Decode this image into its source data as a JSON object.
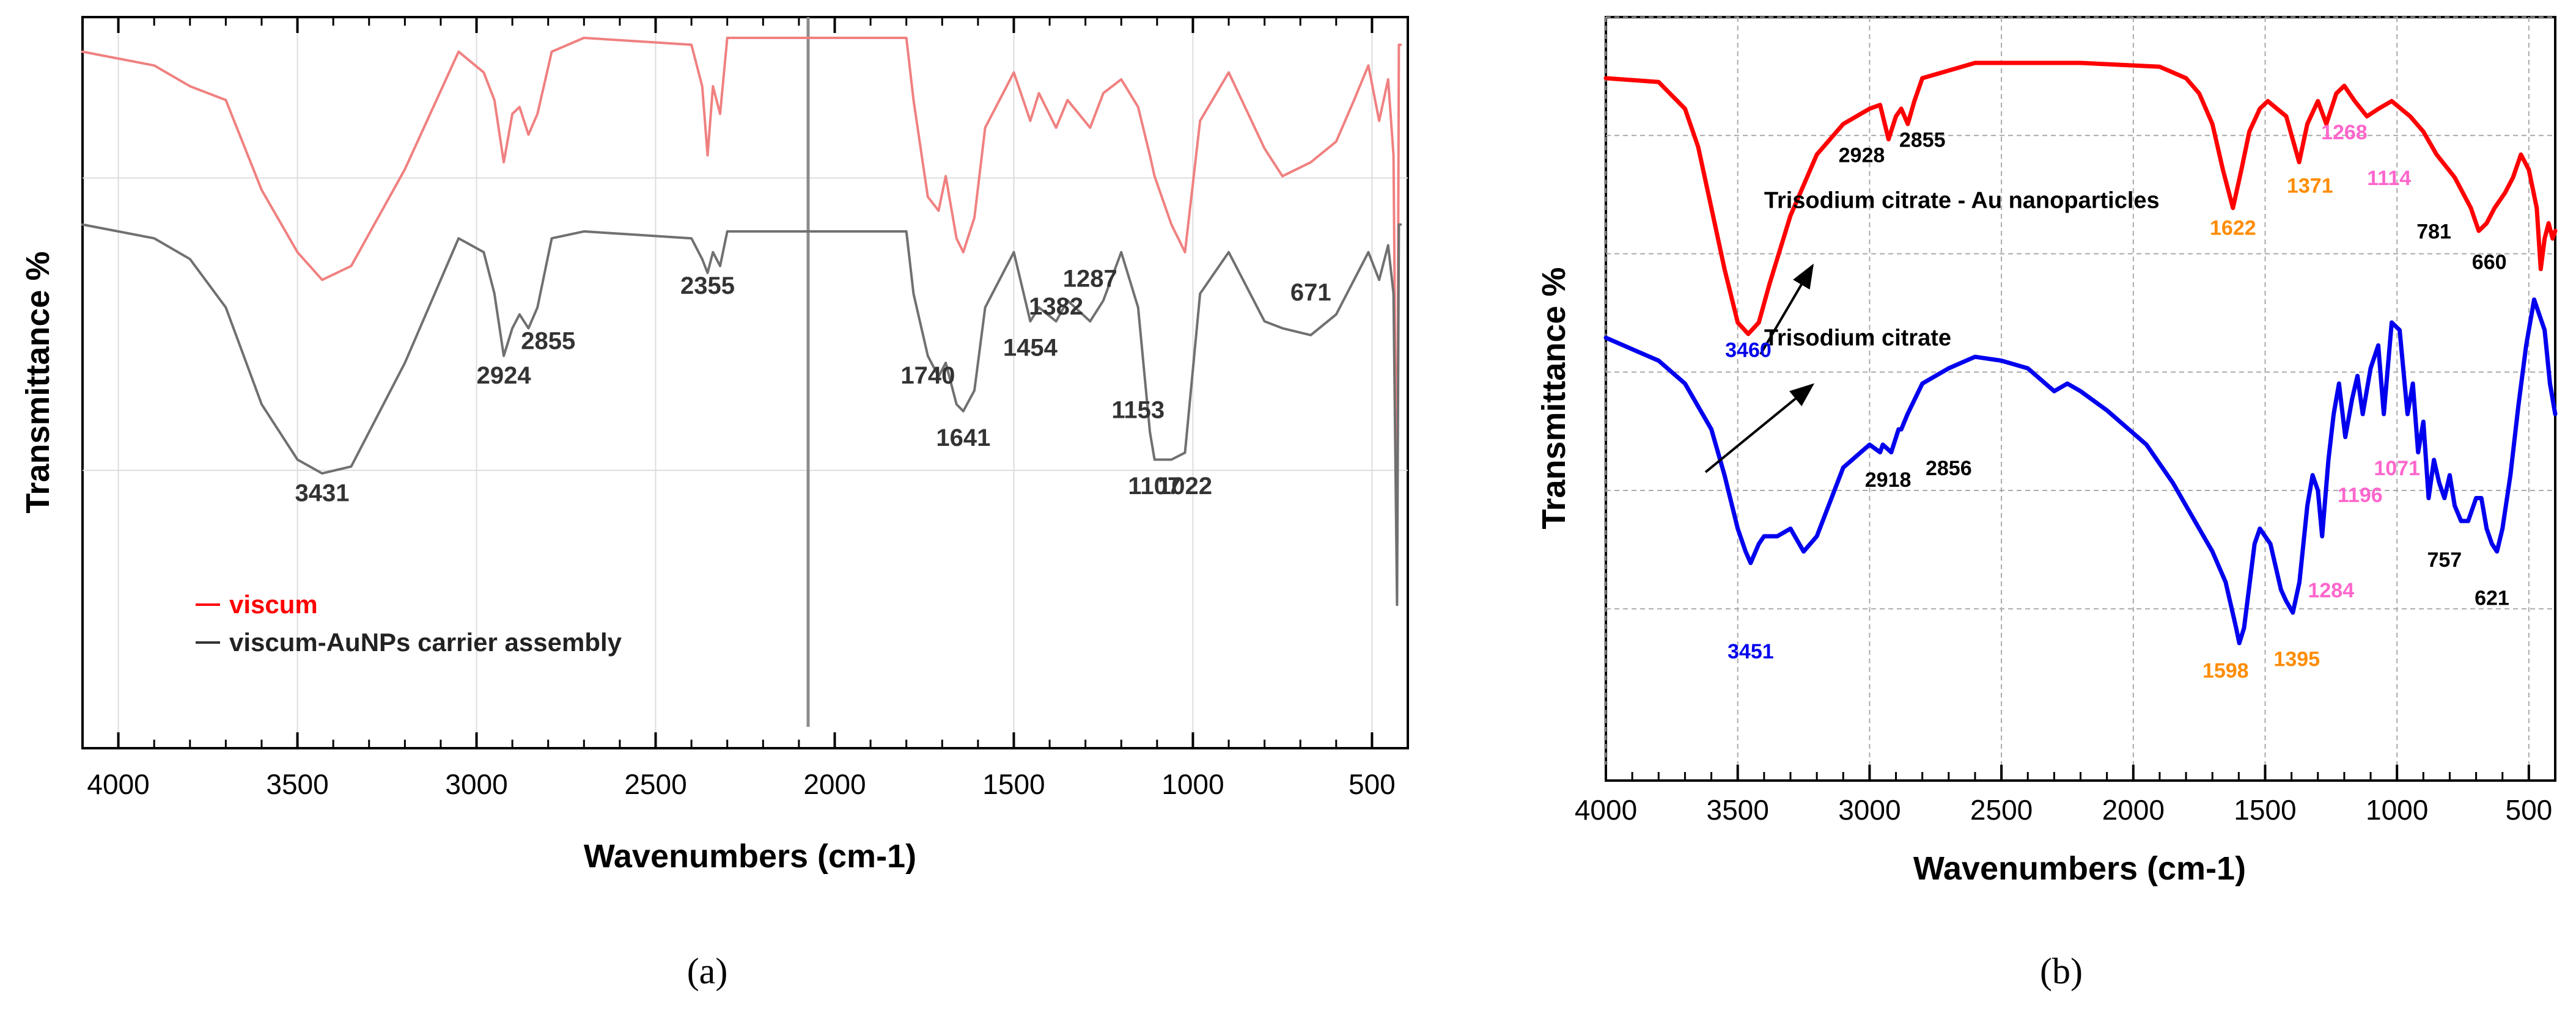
{
  "figure": {
    "panel_a_label": "(a)",
    "panel_b_label": "(b)"
  },
  "chart_data": [
    {
      "panel": "a",
      "type": "line",
      "xlabel": "Wavenumbers (cm-1)",
      "ylabel": "Transmittance %",
      "xlim": [
        4100,
        400
      ],
      "ylim": [
        0,
        100
      ],
      "x_ticks": [
        4000,
        3500,
        3000,
        2500,
        2000,
        1500,
        1000,
        500
      ],
      "legend": {
        "placement": "bottom-left",
        "entries": [
          {
            "label": "viscum",
            "color": "#ff0000"
          },
          {
            "label": "viscum-AuNPs carrier assembly",
            "color": "#333333"
          }
        ]
      },
      "series": [
        {
          "name": "viscum",
          "color": "#f08080",
          "x": [
            4100,
            3900,
            3800,
            3700,
            3600,
            3500,
            3431,
            3350,
            3200,
            3050,
            2980,
            2950,
            2924,
            2900,
            2880,
            2855,
            2830,
            2790,
            2700,
            2400,
            2370,
            2355,
            2340,
            2320,
            2300,
            1800,
            1780,
            1740,
            1710,
            1690,
            1660,
            1641,
            1610,
            1580,
            1560,
            1500,
            1454,
            1430,
            1382,
            1350,
            1287,
            1250,
            1200,
            1153,
            1120,
            1107,
            1060,
            1022,
            980,
            900,
            800,
            750,
            671,
            600,
            550,
            510,
            480,
            455,
            440,
            430,
            425,
            420
          ],
          "values": [
            95,
            93,
            90,
            88,
            75,
            66,
            62,
            64,
            78,
            95,
            92,
            88,
            79,
            86,
            87,
            83,
            86,
            95,
            97,
            96,
            90,
            80,
            90,
            86,
            97,
            97,
            88,
            74,
            72,
            77,
            68,
            66,
            71,
            84,
            86,
            92,
            85,
            89,
            84,
            88,
            84,
            89,
            91,
            87,
            80,
            77,
            70,
            66,
            85,
            92,
            81,
            77,
            79,
            82,
            88,
            93,
            85,
            91,
            80,
            20,
            96,
            96
          ]
        },
        {
          "name": "viscum-AuNPs carrier assembly",
          "color": "#707070",
          "x": [
            4100,
            3900,
            3800,
            3700,
            3600,
            3500,
            3431,
            3350,
            3200,
            3050,
            2980,
            2950,
            2924,
            2900,
            2880,
            2855,
            2830,
            2790,
            2700,
            2400,
            2370,
            2355,
            2340,
            2320,
            2300,
            1800,
            1780,
            1740,
            1710,
            1690,
            1660,
            1641,
            1610,
            1580,
            1560,
            1500,
            1454,
            1430,
            1382,
            1350,
            1287,
            1250,
            1200,
            1153,
            1120,
            1107,
            1060,
            1022,
            980,
            900,
            800,
            750,
            671,
            600,
            550,
            510,
            480,
            455,
            440,
            430,
            425,
            420
          ],
          "values": [
            70,
            68,
            65,
            58,
            44,
            36,
            34,
            35,
            50,
            68,
            66,
            60,
            51,
            55,
            57,
            55,
            58,
            68,
            69,
            68,
            65,
            63,
            66,
            64,
            69,
            69,
            60,
            51,
            48,
            50,
            44,
            43,
            46,
            58,
            60,
            66,
            56,
            58,
            56,
            59,
            56,
            59,
            66,
            58,
            40,
            36,
            36,
            37,
            60,
            66,
            56,
            55,
            54,
            57,
            62,
            66,
            62,
            67,
            60,
            15,
            70,
            70
          ]
        }
      ],
      "annotations": [
        {
          "text": "3431",
          "x": 3431,
          "y": 30
        },
        {
          "text": "2924",
          "x": 2924,
          "y": 47
        },
        {
          "text": "2855",
          "x": 2800,
          "y": 52
        },
        {
          "text": "2355",
          "x": 2355,
          "y": 60
        },
        {
          "text": "1740",
          "x": 1740,
          "y": 47
        },
        {
          "text": "1641",
          "x": 1641,
          "y": 38
        },
        {
          "text": "1454",
          "x": 1454,
          "y": 51
        },
        {
          "text": "1382",
          "x": 1382,
          "y": 57
        },
        {
          "text": "1287",
          "x": 1287,
          "y": 61
        },
        {
          "text": "1153",
          "x": 1153,
          "y": 42
        },
        {
          "text": "1107",
          "x": 1107,
          "y": 31
        },
        {
          "text": "1022",
          "x": 1022,
          "y": 31
        },
        {
          "text": "671",
          "x": 671,
          "y": 59
        }
      ]
    },
    {
      "panel": "b",
      "type": "line",
      "xlabel": "Wavenumbers (cm-1)",
      "ylabel": "Transmittance %",
      "xlim": [
        4000,
        400
      ],
      "ylim": [
        0,
        100
      ],
      "x_ticks": [
        4000,
        3500,
        3000,
        2500,
        2000,
        1500,
        1000,
        500
      ],
      "series": [
        {
          "name": "Trisodium citrate - Au nanoparticles",
          "color": "#ff0000",
          "x": [
            4000,
            3800,
            3700,
            3650,
            3600,
            3550,
            3500,
            3460,
            3420,
            3380,
            3300,
            3200,
            3100,
            3000,
            2960,
            2928,
            2900,
            2880,
            2855,
            2830,
            2800,
            2600,
            2200,
            1900,
            1800,
            1750,
            1700,
            1660,
            1622,
            1590,
            1560,
            1520,
            1490,
            1420,
            1371,
            1340,
            1300,
            1268,
            1230,
            1200,
            1160,
            1114,
            1070,
            1020,
            950,
            900,
            850,
            781,
            720,
            690,
            660,
            630,
            590,
            560,
            530,
            500,
            470,
            455,
            440,
            425,
            410,
            400
          ],
          "values": [
            92,
            91.5,
            88,
            83,
            75,
            67,
            60,
            58.5,
            60,
            65,
            74,
            82,
            86,
            88,
            88.5,
            84,
            87,
            88,
            86,
            89,
            92,
            94,
            94,
            93.5,
            92,
            90,
            86,
            80,
            75,
            80,
            85,
            88,
            89,
            87,
            81,
            86,
            89,
            86,
            90,
            91,
            89,
            87,
            88,
            89,
            87,
            85,
            82,
            79,
            75,
            72,
            73,
            75,
            77,
            79,
            82,
            80,
            75,
            67,
            71,
            73,
            71,
            72
          ]
        },
        {
          "name": "Trisodium citrate",
          "color": "#0000ee",
          "x": [
            4000,
            3800,
            3700,
            3600,
            3550,
            3500,
            3470,
            3451,
            3420,
            3400,
            3350,
            3300,
            3250,
            3200,
            3100,
            3000,
            2960,
            2950,
            2918,
            2890,
            2880,
            2856,
            2800,
            2700,
            2600,
            2500,
            2400,
            2300,
            2250,
            2200,
            2100,
            1950,
            1850,
            1750,
            1700,
            1650,
            1610,
            1598,
            1580,
            1540,
            1520,
            1480,
            1440,
            1420,
            1395,
            1370,
            1340,
            1320,
            1300,
            1284,
            1260,
            1240,
            1220,
            1196,
            1170,
            1150,
            1130,
            1100,
            1071,
            1050,
            1020,
            990,
            960,
            940,
            920,
            900,
            880,
            860,
            840,
            820,
            800,
            781,
            757,
            730,
            700,
            680,
            660,
            640,
            621,
            600,
            570,
            540,
            510,
            480,
            460,
            440,
            420,
            400
          ],
          "values": [
            58,
            55,
            52,
            46,
            40,
            33,
            30,
            28.5,
            31,
            32,
            32,
            33,
            30,
            32,
            41,
            44,
            43,
            44,
            43,
            46,
            46,
            48,
            52,
            54,
            55.5,
            55,
            54,
            51,
            52,
            51,
            48.5,
            44,
            39,
            33,
            30,
            26,
            20,
            18,
            20,
            31,
            33,
            31,
            25,
            23.5,
            22,
            26,
            36,
            40,
            38,
            32,
            42,
            48,
            52,
            45,
            50,
            53,
            48,
            54,
            57,
            48,
            60,
            59,
            48,
            52,
            43,
            47,
            37,
            42,
            39,
            37,
            40,
            36,
            34,
            34,
            37,
            37,
            33,
            31,
            30,
            33,
            40,
            49,
            57,
            63,
            61,
            59,
            52,
            48
          ]
        }
      ],
      "legend_labels": [
        {
          "text": "Trisodium citrate - Au nanoparticles",
          "x": 3400,
          "y": 75
        },
        {
          "text": "Trisodium citrate",
          "x": 3400,
          "y": 57
        }
      ],
      "annotations": [
        {
          "text": "2928",
          "x": 3030,
          "y": 81,
          "color": "#000000"
        },
        {
          "text": "2855",
          "x": 2800,
          "y": 83,
          "color": "#000000"
        },
        {
          "text": "3460",
          "x": 3460,
          "y": 55.5,
          "color": "#0000ee"
        },
        {
          "text": "1622",
          "x": 1622,
          "y": 71.5,
          "color": "#ff8c00"
        },
        {
          "text": "1371",
          "x": 1330,
          "y": 77,
          "color": "#ff8c00"
        },
        {
          "text": "1268",
          "x": 1200,
          "y": 84,
          "color": "#ff66cc"
        },
        {
          "text": "1114",
          "x": 1030,
          "y": 78,
          "color": "#ff66cc"
        },
        {
          "text": "781",
          "x": 860,
          "y": 71,
          "color": "#000000"
        },
        {
          "text": "660",
          "x": 650,
          "y": 67,
          "color": "#000000"
        },
        {
          "text": "2918",
          "x": 2930,
          "y": 38.5,
          "color": "#000000"
        },
        {
          "text": "2856",
          "x": 2700,
          "y": 40,
          "color": "#000000"
        },
        {
          "text": "3451",
          "x": 3451,
          "y": 16,
          "color": "#0000ee"
        },
        {
          "text": "1598",
          "x": 1650,
          "y": 13.5,
          "color": "#ff8c00"
        },
        {
          "text": "1395",
          "x": 1380,
          "y": 15,
          "color": "#ff8c00"
        },
        {
          "text": "1284",
          "x": 1250,
          "y": 24,
          "color": "#ff66cc"
        },
        {
          "text": "1196",
          "x": 1140,
          "y": 36.5,
          "color": "#ff66cc"
        },
        {
          "text": "1071",
          "x": 1000,
          "y": 40,
          "color": "#ff66cc"
        },
        {
          "text": "757",
          "x": 820,
          "y": 28,
          "color": "#000000"
        },
        {
          "text": "621",
          "x": 640,
          "y": 23,
          "color": "#000000"
        }
      ]
    }
  ]
}
